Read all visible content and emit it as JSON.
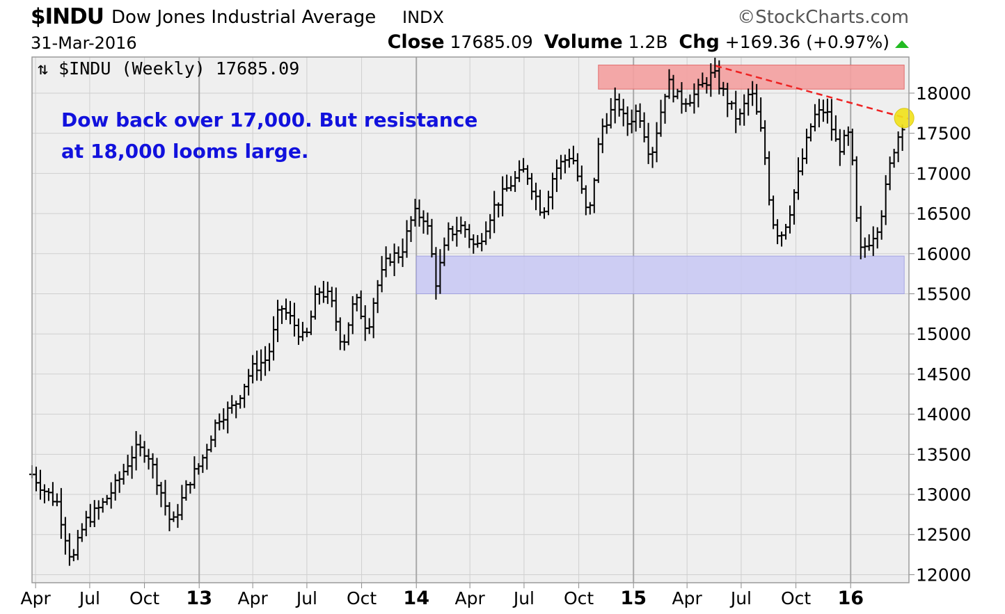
{
  "header": {
    "symbol": "$INDU",
    "name": "Dow Jones Industrial Average",
    "exchange": "INDX",
    "credit": "©StockCharts.com",
    "date": "31-Mar-2016",
    "close_label": "Close",
    "close_value": "17685.09",
    "volume_label": "Volume",
    "volume_value": "1.2B",
    "chg_label": "Chg",
    "chg_value": "+169.36 (+0.97%)",
    "up_color": "#22bb22"
  },
  "chart_data": {
    "type": "ohlc",
    "title": "$INDU (Weekly) 17685.09",
    "series_name": "$INDU (Weekly)",
    "last_value": 17685.09,
    "ylim": [
      11900,
      18450
    ],
    "yticks": [
      12000,
      12500,
      13000,
      13500,
      14000,
      14500,
      15000,
      15500,
      16000,
      16500,
      17000,
      17500,
      18000
    ],
    "xlim": [
      "2012-03-26",
      "2016-04-08"
    ],
    "xticks": [
      {
        "date": "2012-04-01",
        "label": "Apr",
        "major": false
      },
      {
        "date": "2012-07-01",
        "label": "Jul",
        "major": false
      },
      {
        "date": "2012-10-01",
        "label": "Oct",
        "major": false
      },
      {
        "date": "2013-01-01",
        "label": "13",
        "major": true
      },
      {
        "date": "2013-04-01",
        "label": "Apr",
        "major": false
      },
      {
        "date": "2013-07-01",
        "label": "Jul",
        "major": false
      },
      {
        "date": "2013-10-01",
        "label": "Oct",
        "major": false
      },
      {
        "date": "2014-01-01",
        "label": "14",
        "major": true
      },
      {
        "date": "2014-04-01",
        "label": "Apr",
        "major": false
      },
      {
        "date": "2014-07-01",
        "label": "Jul",
        "major": false
      },
      {
        "date": "2014-10-01",
        "label": "Oct",
        "major": false
      },
      {
        "date": "2015-01-01",
        "label": "15",
        "major": true
      },
      {
        "date": "2015-04-01",
        "label": "Apr",
        "major": false
      },
      {
        "date": "2015-07-01",
        "label": "Jul",
        "major": false
      },
      {
        "date": "2015-10-01",
        "label": "Oct",
        "major": false
      },
      {
        "date": "2016-01-01",
        "label": "16",
        "major": true
      }
    ],
    "path": [
      [
        "2012-03-26",
        13250
      ],
      [
        "2012-04-16",
        13050
      ],
      [
        "2012-05-07",
        12900
      ],
      [
        "2012-06-01",
        12150
      ],
      [
        "2012-06-22",
        12650
      ],
      [
        "2012-07-20",
        12850
      ],
      [
        "2012-08-17",
        13150
      ],
      [
        "2012-09-14",
        13550
      ],
      [
        "2012-10-05",
        13550
      ],
      [
        "2012-10-26",
        13100
      ],
      [
        "2012-11-16",
        12600
      ],
      [
        "2012-12-14",
        13150
      ],
      [
        "2013-01-04",
        13400
      ],
      [
        "2013-02-01",
        13950
      ],
      [
        "2013-03-01",
        14100
      ],
      [
        "2013-03-29",
        14550
      ],
      [
        "2013-04-26",
        14700
      ],
      [
        "2013-05-17",
        15350
      ],
      [
        "2013-06-07",
        15150
      ],
      [
        "2013-06-28",
        14900
      ],
      [
        "2013-07-19",
        15550
      ],
      [
        "2013-08-09",
        15450
      ],
      [
        "2013-08-30",
        14850
      ],
      [
        "2013-09-20",
        15450
      ],
      [
        "2013-10-11",
        15050
      ],
      [
        "2013-10-25",
        15550
      ],
      [
        "2013-11-15",
        15950
      ],
      [
        "2013-12-06",
        16000
      ],
      [
        "2013-12-27",
        16500
      ],
      [
        "2014-01-17",
        16450
      ],
      [
        "2014-02-03",
        15650
      ],
      [
        "2014-02-24",
        16250
      ],
      [
        "2014-03-21",
        16350
      ],
      [
        "2014-04-11",
        16050
      ],
      [
        "2014-05-09",
        16550
      ],
      [
        "2014-06-06",
        16850
      ],
      [
        "2014-07-03",
        17050
      ],
      [
        "2014-08-01",
        16500
      ],
      [
        "2014-08-22",
        17050
      ],
      [
        "2014-09-19",
        17250
      ],
      [
        "2014-10-10",
        16650
      ],
      [
        "2014-10-17",
        16400
      ],
      [
        "2014-11-07",
        17550
      ],
      [
        "2014-12-05",
        17900
      ],
      [
        "2014-12-19",
        17600
      ],
      [
        "2015-01-09",
        17800
      ],
      [
        "2015-01-30",
        17200
      ],
      [
        "2015-02-27",
        18150
      ],
      [
        "2015-03-20",
        17900
      ],
      [
        "2015-04-10",
        17950
      ],
      [
        "2015-05-15",
        18250
      ],
      [
        "2015-06-05",
        17950
      ],
      [
        "2015-06-26",
        17650
      ],
      [
        "2015-07-17",
        18050
      ],
      [
        "2015-08-07",
        17400
      ],
      [
        "2015-08-21",
        16450
      ],
      [
        "2015-09-04",
        16200
      ],
      [
        "2015-09-18",
        16450
      ],
      [
        "2015-10-09",
        17100
      ],
      [
        "2015-10-30",
        17700
      ],
      [
        "2015-11-20",
        17800
      ],
      [
        "2015-12-11",
        17300
      ],
      [
        "2015-12-31",
        17500
      ],
      [
        "2016-01-15",
        16000
      ],
      [
        "2016-02-05",
        16200
      ],
      [
        "2016-02-19",
        16400
      ],
      [
        "2016-03-11",
        17250
      ],
      [
        "2016-03-31",
        17685
      ]
    ],
    "annotations": {
      "resistance_zone": {
        "from": "2014-11-03",
        "to": "2016-03-31",
        "low": 18050,
        "high": 18350,
        "color": "#f4a0a0"
      },
      "support_zone": {
        "from": "2014-01-01",
        "to": "2016-03-31",
        "low": 15500,
        "high": 15970,
        "color": "#c8c8f4"
      },
      "trendline": {
        "start": [
          "2015-05-19",
          18340
        ],
        "end": [
          "2016-04-08",
          17680
        ],
        "color": "#ee2222"
      },
      "highlight_marker": {
        "date": "2016-03-31",
        "value": 17690,
        "color": "#f2e21a"
      },
      "note_line1": "Dow back over 17,000. But resistance",
      "note_line2": "at 18,000 looms large."
    }
  }
}
